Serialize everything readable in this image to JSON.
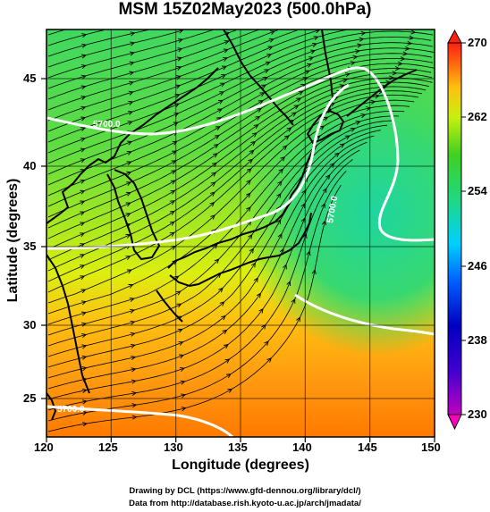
{
  "title": "MSM 15Z02May2023 (500.0hPa)",
  "x_axis": {
    "label": "Longitude (degrees)",
    "ticks": [
      "120",
      "125",
      "130",
      "135",
      "140",
      "145",
      "150"
    ]
  },
  "y_axis": {
    "label": "Latitude  (degrees)",
    "ticks": [
      "45",
      "40",
      "35",
      "30",
      "25"
    ]
  },
  "colorbar": {
    "ticks": [
      "270",
      "262",
      "254",
      "246",
      "238",
      "230"
    ]
  },
  "contour_labels": [
    "5700.0",
    "5700.0",
    "5700.0"
  ],
  "credits": {
    "line1": "Drawing by DCL (https://www.gfd-dennou.org/library/dcl/)",
    "line2": "Data from http://database.rish.kyoto-u.ac.jp/arch/jmadata/"
  },
  "colors": {
    "cold": "#22d68a",
    "mid": "#d8f018",
    "warm": "#ff8a10",
    "hot": "#ff5a00"
  }
}
